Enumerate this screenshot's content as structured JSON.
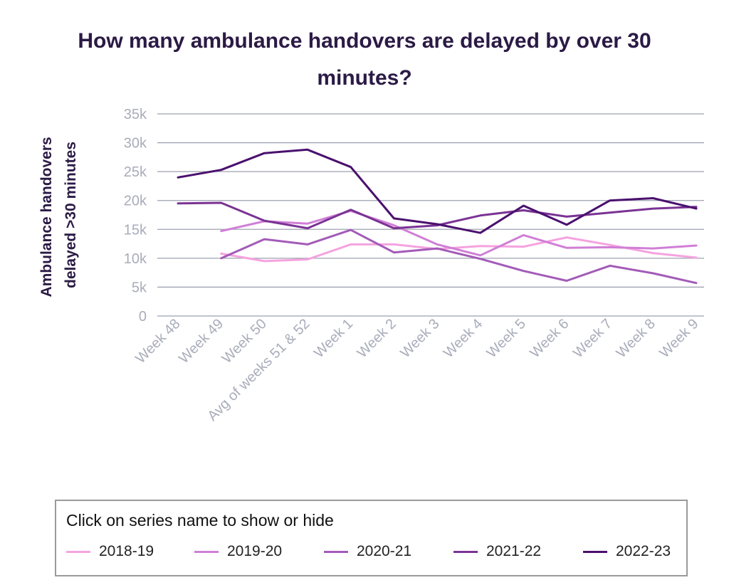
{
  "title": "How many ambulance handovers are delayed by over 30 minutes?",
  "legend": {
    "hint": "Click on series name to show or hide",
    "items": [
      {
        "label": "2018-19"
      },
      {
        "label": "2019-20"
      },
      {
        "label": "2020-21"
      },
      {
        "label": "2021-22"
      },
      {
        "label": "2022-23"
      }
    ]
  },
  "chart_data": {
    "type": "line",
    "title": "How many ambulance handovers are delayed by over 30 minutes?",
    "ylabel": "Ambulance handovers delayed >30 minutes",
    "ylabel_lines": [
      "Ambulance handovers",
      "delayed >30 minutes"
    ],
    "xlabel": "",
    "ylim": [
      0,
      35000
    ],
    "yticks": [
      0,
      5000,
      10000,
      15000,
      20000,
      25000,
      30000,
      35000
    ],
    "ytick_labels": [
      "0",
      "5k",
      "10k",
      "15k",
      "20k",
      "25k",
      "30k",
      "35k"
    ],
    "grid": true,
    "legend_position": "bottom",
    "categories": [
      "Week 48",
      "Week 49",
      "Week 50",
      "Avg of weeks 51 & 52",
      "Week 1",
      "Week 2",
      "Week 3",
      "Week 4",
      "Week 5",
      "Week 6",
      "Week 7",
      "Week 8",
      "Week 9"
    ],
    "series": [
      {
        "name": "2018-19",
        "color": "#f5a3df",
        "values": [
          null,
          10800,
          9500,
          9800,
          12400,
          12400,
          11600,
          12100,
          12000,
          13600,
          12300,
          10900,
          10100
        ]
      },
      {
        "name": "2019-20",
        "color": "#d07fd6",
        "values": [
          null,
          14700,
          16400,
          16000,
          18200,
          15700,
          12400,
          10500,
          14000,
          11800,
          11900,
          11700,
          12200
        ]
      },
      {
        "name": "2020-21",
        "color": "#a35bb8",
        "values": [
          null,
          10000,
          13300,
          12400,
          14900,
          11000,
          11700,
          9900,
          7800,
          6100,
          8700,
          7400,
          5700
        ]
      },
      {
        "name": "2021-22",
        "color": "#7a3394",
        "values": [
          19500,
          19600,
          16500,
          15200,
          18400,
          15200,
          15700,
          17400,
          18300,
          17200,
          17900,
          18600,
          18900
        ]
      },
      {
        "name": "2022-23",
        "color": "#4a106e",
        "values": [
          24000,
          25300,
          28200,
          28800,
          25800,
          16900,
          15900,
          14400,
          19100,
          15800,
          20000,
          20400,
          18600
        ]
      }
    ]
  }
}
